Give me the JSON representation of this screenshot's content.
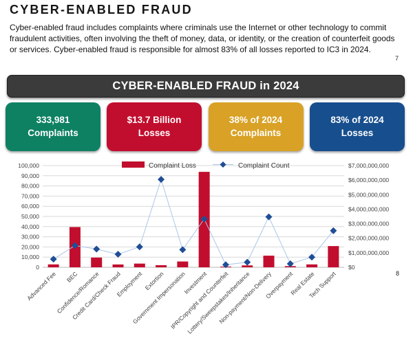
{
  "page": {
    "title": "CYBER-ENABLED FRAUD",
    "paragraph": "Cyber-enabled fraud includes complaints where criminals use the Internet or other technology to commit fraudulent activities, often involving the theft of money, data, or identity, or the creation of counterfeit goods or services. Cyber-enabled fraud is responsible for almost 83% of all losses reported to IC3 in 2024.",
    "page_number_top": "7",
    "page_number_bottom": "8"
  },
  "banner": {
    "label": "CYBER-ENABLED FRAUD in 2024",
    "bg": "#3b3b3b",
    "text_color": "#ffffff"
  },
  "stat_boxes": [
    {
      "line1": "333,981",
      "line2": "Complaints",
      "color": "#0F8163"
    },
    {
      "line1": "$13.7 Billion",
      "line2": "Losses",
      "color": "#C20E2E"
    },
    {
      "line1": "38% of 2024",
      "line2": "Complaints",
      "color": "#D9A226"
    },
    {
      "line1": "83% of 2024",
      "line2": "Losses",
      "color": "#174F8E"
    }
  ],
  "chart_data": {
    "type": "bar",
    "subtype": "combo-bar-line-dual-axis",
    "categories": [
      "Advanced Fee",
      "BEC",
      "Confidence/Romance",
      "Credit Card/Check Fraud",
      "Employment",
      "Extortion",
      "Government Impersonation",
      "Investment",
      "IPR/Copyright and Counterfeit",
      "Lottery/Sweepstakes/Inheritance",
      "Non-payment/Non-Delivery",
      "Overpayment",
      "Real Estate",
      "Tech Support"
    ],
    "series": [
      {
        "name": "Complaint Loss",
        "type": "bar",
        "axis": "right",
        "color": "#C20E2E",
        "values": [
          200000000,
          2770000000,
          670000000,
          195000000,
          255000000,
          145000000,
          400000000,
          6570000000,
          50000000,
          130000000,
          800000000,
          80000000,
          200000000,
          1460000000
        ]
      },
      {
        "name": "Complaint Count",
        "type": "line",
        "axis": "left",
        "color": "#1F4E96",
        "line_color": "#A9C7E8",
        "values": [
          8000,
          21400,
          17900,
          12800,
          20100,
          86400,
          17300,
          47500,
          2500,
          5000,
          49600,
          3500,
          10000,
          36000
        ]
      }
    ],
    "left_axis": {
      "min": 0,
      "max": 100000,
      "ticks_top_to_bottom": [
        "100,000",
        "90,000",
        "80,000",
        "70,000",
        "60,000",
        "50,000",
        "40,000",
        "30,000",
        "20,000",
        "10,000",
        "0"
      ]
    },
    "right_axis": {
      "min": 0,
      "max": 7000000000,
      "ticks_top_to_bottom": [
        "$7,000,000,000",
        "$6,000,000,000",
        "$5,000,000,000",
        "$4,000,000,000",
        "$3,000,000,000",
        "$2,000,000,000",
        "$1,000,000,000",
        "$0"
      ]
    },
    "grid": true,
    "grid_color": "#d9d9d9",
    "axis_line_color": "#b7b7b7",
    "tick_text_color": "#404040",
    "legend_position": "top-center"
  }
}
